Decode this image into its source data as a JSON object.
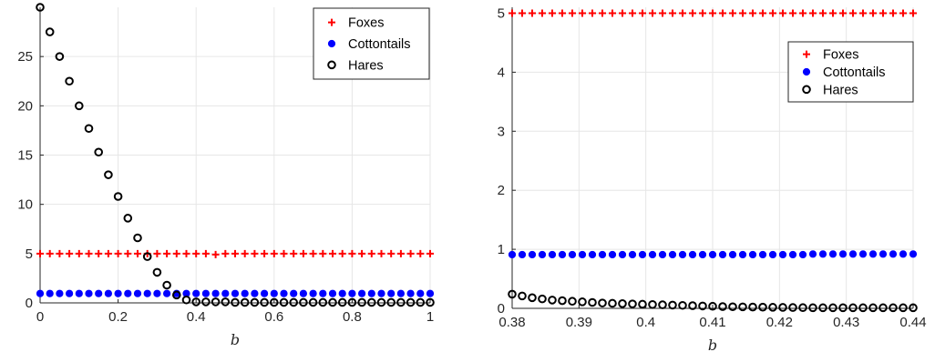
{
  "chart_data": [
    {
      "type": "scatter",
      "xlabel": "b",
      "ylabel": "",
      "xlim": [
        0,
        1
      ],
      "ylim": [
        0,
        30
      ],
      "xticks": [
        "0",
        "0.2",
        "0.4",
        "0.6",
        "0.8",
        "1"
      ],
      "yticks": [
        "0",
        "5",
        "10",
        "15",
        "20",
        "25"
      ],
      "grid": true,
      "legend_position": "top-right",
      "x": [
        0,
        0.025,
        0.05,
        0.075,
        0.1,
        0.125,
        0.15,
        0.175,
        0.2,
        0.225,
        0.25,
        0.275,
        0.3,
        0.325,
        0.35,
        0.375,
        0.4,
        0.425,
        0.45,
        0.475,
        0.5,
        0.525,
        0.55,
        0.575,
        0.6,
        0.625,
        0.65,
        0.675,
        0.7,
        0.725,
        0.75,
        0.775,
        0.8,
        0.825,
        0.85,
        0.875,
        0.9,
        0.925,
        0.95,
        0.975,
        1
      ],
      "series": [
        {
          "name": "Foxes",
          "color": "#ff0000",
          "marker": "plus",
          "values": [
            5,
            5,
            5,
            5,
            5,
            5,
            5,
            5,
            5,
            5,
            5,
            5,
            5,
            5,
            5,
            5,
            5,
            5,
            4.9,
            5,
            5,
            5,
            5,
            5,
            5,
            5,
            5,
            5,
            5,
            5,
            5,
            5,
            5,
            5,
            5,
            5,
            5,
            5,
            5,
            5,
            5
          ]
        },
        {
          "name": "Cottontails",
          "color": "#0000ff",
          "marker": "filled-circle",
          "values": [
            0.95,
            0.95,
            0.95,
            0.95,
            0.95,
            0.95,
            0.95,
            0.95,
            0.95,
            0.95,
            0.95,
            0.95,
            0.95,
            0.95,
            0.95,
            0.95,
            0.95,
            0.95,
            0.95,
            0.95,
            0.95,
            0.95,
            0.95,
            0.95,
            0.95,
            0.95,
            0.95,
            0.95,
            0.95,
            0.95,
            0.95,
            0.95,
            0.95,
            0.95,
            0.95,
            0.95,
            0.95,
            0.95,
            0.95,
            0.95,
            0.95
          ]
        },
        {
          "name": "Hares",
          "color": "#000000",
          "marker": "open-circle",
          "values": [
            30,
            27.5,
            25,
            22.5,
            20,
            17.7,
            15.3,
            13,
            10.8,
            8.6,
            6.6,
            4.7,
            3.1,
            1.8,
            0.8,
            0.3,
            0.1,
            0.1,
            0.1,
            0.1,
            0.05,
            0.05,
            0.05,
            0.05,
            0.05,
            0.05,
            0.05,
            0.05,
            0.05,
            0.05,
            0.05,
            0.05,
            0.05,
            0.05,
            0.05,
            0.05,
            0.05,
            0.05,
            0.05,
            0.05,
            0.05
          ]
        }
      ]
    },
    {
      "type": "scatter",
      "xlabel": "b",
      "ylabel": "",
      "xlim": [
        0.38,
        0.44
      ],
      "ylim": [
        0,
        5.1
      ],
      "xticks": [
        "0.38",
        "0.39",
        "0.4",
        "0.41",
        "0.42",
        "0.43",
        "0.44"
      ],
      "yticks": [
        "0",
        "1",
        "2",
        "3",
        "4",
        "5"
      ],
      "grid": true,
      "legend_position": "top-right",
      "x": [
        0.38,
        0.3815,
        0.383,
        0.3845,
        0.386,
        0.3875,
        0.389,
        0.3905,
        0.392,
        0.3935,
        0.395,
        0.3965,
        0.398,
        0.3995,
        0.401,
        0.4025,
        0.404,
        0.4055,
        0.407,
        0.4085,
        0.41,
        0.4115,
        0.413,
        0.4145,
        0.416,
        0.4175,
        0.419,
        0.4205,
        0.422,
        0.4235,
        0.425,
        0.4265,
        0.428,
        0.4295,
        0.431,
        0.4325,
        0.434,
        0.4355,
        0.437,
        0.4385,
        0.44
      ],
      "series": [
        {
          "name": "Foxes",
          "color": "#ff0000",
          "marker": "plus",
          "values": [
            5,
            5,
            5,
            5,
            5,
            5,
            5,
            5,
            5,
            5,
            5,
            5,
            5,
            5,
            5,
            5,
            5,
            5,
            5,
            5,
            5,
            5,
            5,
            5,
            5,
            5,
            5,
            5,
            5,
            5,
            5,
            5,
            5,
            5,
            5,
            5,
            5,
            5,
            5,
            5,
            5
          ]
        },
        {
          "name": "Cottontails",
          "color": "#0000ff",
          "marker": "filled-circle",
          "values": [
            0.91,
            0.91,
            0.91,
            0.91,
            0.91,
            0.91,
            0.91,
            0.91,
            0.91,
            0.91,
            0.91,
            0.91,
            0.91,
            0.91,
            0.91,
            0.91,
            0.91,
            0.91,
            0.91,
            0.91,
            0.91,
            0.91,
            0.91,
            0.91,
            0.91,
            0.91,
            0.91,
            0.91,
            0.91,
            0.91,
            0.92,
            0.92,
            0.92,
            0.92,
            0.92,
            0.92,
            0.92,
            0.92,
            0.92,
            0.92,
            0.92
          ]
        },
        {
          "name": "Hares",
          "color": "#000000",
          "marker": "open-circle",
          "values": [
            0.24,
            0.21,
            0.18,
            0.16,
            0.14,
            0.13,
            0.12,
            0.11,
            0.1,
            0.09,
            0.085,
            0.08,
            0.075,
            0.07,
            0.065,
            0.06,
            0.055,
            0.05,
            0.045,
            0.04,
            0.035,
            0.03,
            0.027,
            0.025,
            0.022,
            0.02,
            0.018,
            0.016,
            0.014,
            0.012,
            0.01,
            0.01,
            0.01,
            0.01,
            0.01,
            0.01,
            0.01,
            0.01,
            0.01,
            0.01,
            0.01
          ]
        }
      ]
    }
  ]
}
